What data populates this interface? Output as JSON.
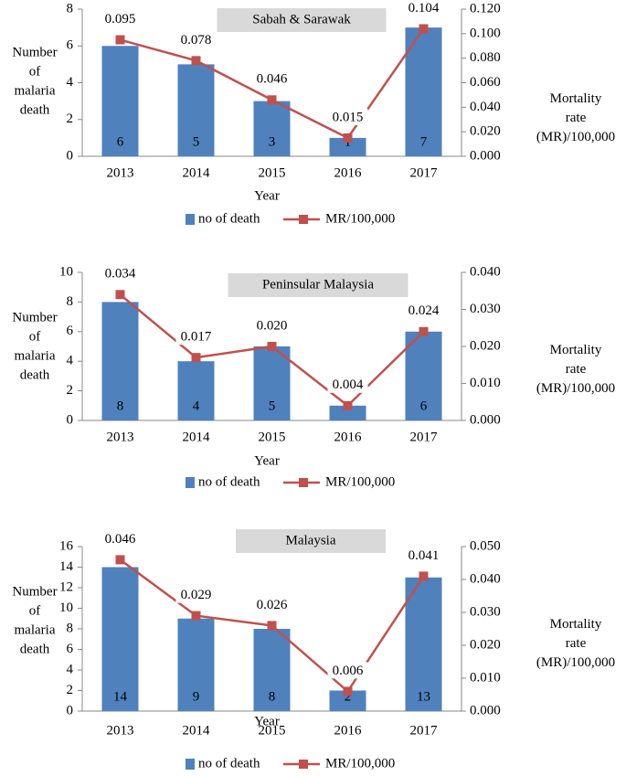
{
  "chart_data": [
    {
      "type": "bar",
      "title": "Sabah & Sarawak",
      "x_label": "Year",
      "y_label": "Number of malaria death",
      "y2_label": "Mortality rate (MR)/100,000",
      "categories": [
        "2013",
        "2014",
        "2015",
        "2016",
        "2017"
      ],
      "series": [
        {
          "name": "no of death",
          "type": "bar",
          "color": "#4f81bd",
          "values": [
            6,
            5,
            3,
            1,
            7
          ]
        },
        {
          "name": "MR/100,000",
          "type": "line",
          "axis": "y2",
          "color": "#c0504d",
          "values": [
            0.095,
            0.078,
            0.046,
            0.015,
            0.104
          ],
          "value_labels": [
            "0.095",
            "0.078",
            "0.046",
            "0.015",
            "0.104"
          ]
        }
      ],
      "ylim": [
        0,
        8
      ],
      "yticks": [
        0,
        2,
        4,
        6,
        8
      ],
      "y2lim": [
        0,
        0.12
      ],
      "y2ticks": [
        {
          "value": 0,
          "label": "0.000"
        },
        {
          "value": 0.02,
          "label": "0.020"
        },
        {
          "value": 0.04,
          "label": "0.040"
        },
        {
          "value": 0.06,
          "label": "0.060"
        },
        {
          "value": 0.08,
          "label": "0.080"
        },
        {
          "value": 0.1,
          "label": "0.100"
        },
        {
          "value": 0.12,
          "label": "0.120"
        }
      ],
      "legend": "bottom"
    },
    {
      "type": "bar",
      "title": "Peninsular Malaysia",
      "x_label": "Year",
      "y_label": "Number of malaria death",
      "y2_label": "Mortality rate (MR)/100,000",
      "categories": [
        "2013",
        "2014",
        "2015",
        "2016",
        "2017"
      ],
      "series": [
        {
          "name": "no of death",
          "type": "bar",
          "color": "#4f81bd",
          "values": [
            8,
            4,
            5,
            1,
            6
          ]
        },
        {
          "name": "MR/100,000",
          "type": "line",
          "axis": "y2",
          "color": "#c0504d",
          "values": [
            0.034,
            0.017,
            0.02,
            0.004,
            0.024
          ],
          "value_labels": [
            "0.034",
            "0.017",
            "0.020",
            "0.004",
            "0.024"
          ]
        }
      ],
      "ylim": [
        0,
        10
      ],
      "yticks": [
        0,
        2,
        4,
        6,
        8,
        10
      ],
      "y2lim": [
        0,
        0.04
      ],
      "y2ticks": [
        {
          "value": 0,
          "label": "0.000"
        },
        {
          "value": 0.01,
          "label": "0.010"
        },
        {
          "value": 0.02,
          "label": "0.020"
        },
        {
          "value": 0.03,
          "label": "0.030"
        },
        {
          "value": 0.04,
          "label": "0.040"
        }
      ],
      "legend": "bottom"
    },
    {
      "type": "bar",
      "title": "Malaysia",
      "x_label": "Year",
      "y_label": "Number of malaria death",
      "y2_label": "Mortality rate (MR)/100,000",
      "categories": [
        "2013",
        "2014",
        "2015",
        "2016",
        "2017"
      ],
      "series": [
        {
          "name": "no of death",
          "type": "bar",
          "color": "#4f81bd",
          "values": [
            14,
            9,
            8,
            2,
            13
          ]
        },
        {
          "name": "MR/100,000",
          "type": "line",
          "axis": "y2",
          "color": "#c0504d",
          "values": [
            0.046,
            0.029,
            0.026,
            0.006,
            0.041
          ],
          "value_labels": [
            "0.046",
            "0.029",
            "0.026",
            "0.006",
            "0.041"
          ]
        }
      ],
      "ylim": [
        0,
        16
      ],
      "yticks": [
        0,
        2,
        4,
        6,
        8,
        10,
        12,
        14,
        16
      ],
      "y2lim": [
        0,
        0.05
      ],
      "y2ticks": [
        {
          "value": 0,
          "label": "0.000"
        },
        {
          "value": 0.01,
          "label": "0.010"
        },
        {
          "value": 0.02,
          "label": "0.020"
        },
        {
          "value": 0.03,
          "label": "0.030"
        },
        {
          "value": 0.04,
          "label": "0.040"
        },
        {
          "value": 0.05,
          "label": "0.050"
        }
      ],
      "legend": "bottom"
    }
  ]
}
